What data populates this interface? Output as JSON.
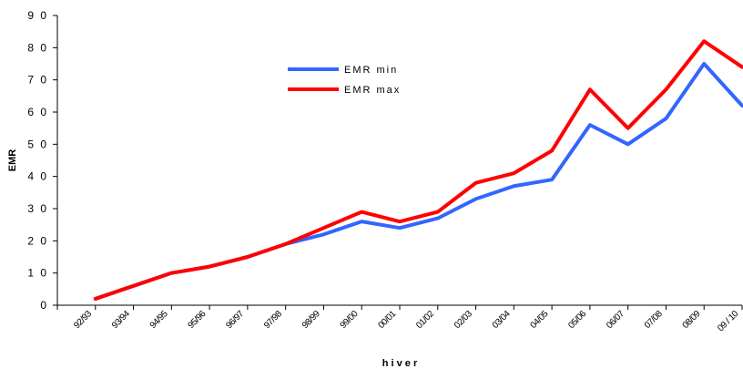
{
  "chart_data": {
    "type": "line",
    "title": "",
    "xlabel": "h i v e r",
    "ylabel": "EMR",
    "ylim": [
      0,
      90
    ],
    "yticks": [
      "0",
      "1 0",
      "2 0",
      "3 0",
      "4 0",
      "5 0",
      "6 0",
      "7 0",
      "8 0",
      "9 0"
    ],
    "categories": [
      "92/93",
      "93/94",
      "94/95",
      "95/96",
      "96/97",
      "97/98",
      "98/99",
      "99/00",
      "00/01",
      "01/02",
      "02/03",
      "03/04",
      "04/05",
      "05/06",
      "06/07",
      "07/08",
      "08/09",
      "09/10"
    ],
    "x_tick_labels": [
      "92/93",
      "93/94",
      "94/95",
      "95/96",
      "96/97",
      "97/98",
      "98/99",
      "99/00",
      "00/01",
      "01/02",
      "02/03",
      "03/04",
      "04/05",
      "05/06",
      "06/07",
      "07/08",
      "08/09",
      "09 / 10"
    ],
    "legend_position": "top-center",
    "grid": false,
    "series": [
      {
        "name": "EMR min",
        "color": "#3366ff",
        "values": [
          2,
          6,
          10,
          12,
          15,
          19,
          22,
          26,
          24,
          27,
          33,
          37,
          39,
          56,
          50,
          58,
          75,
          62
        ]
      },
      {
        "name": "EMR max",
        "color": "#ff0000",
        "values": [
          2,
          6,
          10,
          12,
          15,
          19,
          24,
          29,
          26,
          29,
          38,
          41,
          48,
          67,
          55,
          67,
          82,
          74
        ]
      }
    ]
  }
}
